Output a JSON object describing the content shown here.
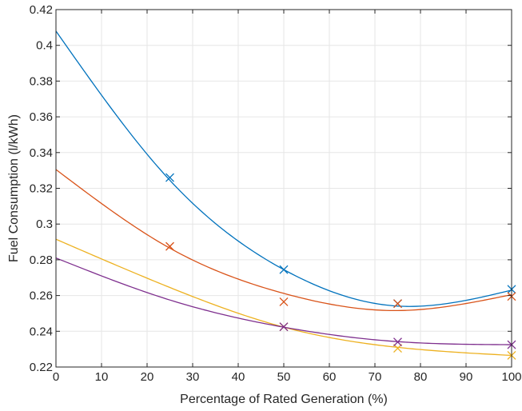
{
  "chart_data": {
    "type": "line",
    "title": "",
    "xlabel": "Percentage of Rated Generation (%)",
    "ylabel": "Fuel Consumption (l/kWh)",
    "xlim": [
      0,
      100
    ],
    "ylim": [
      0.22,
      0.42
    ],
    "xticks": [
      0,
      10,
      20,
      30,
      40,
      50,
      60,
      70,
      80,
      90,
      100
    ],
    "yticks": [
      0.22,
      0.24,
      0.26,
      0.28,
      0.3,
      0.32,
      0.34,
      0.36,
      0.38,
      0.4,
      0.42
    ],
    "ytick_labels": [
      "0.22",
      "0.24",
      "0.26",
      "0.28",
      "0.3",
      "0.32",
      "0.34",
      "0.36",
      "0.38",
      "0.4",
      "0.42"
    ],
    "grid": true,
    "legend": "none",
    "marker": "x",
    "series": [
      {
        "color": "#0072BD",
        "points": {
          "x": [
            25,
            50,
            75,
            100
          ],
          "y": [
            0.326,
            0.2745,
            0.2555,
            0.2635
          ]
        },
        "fit": {
          "x": [
            0,
            25,
            50,
            75,
            100
          ],
          "y": [
            0.408,
            0.3245,
            0.2745,
            0.2541,
            0.263
          ]
        }
      },
      {
        "color": "#D95319",
        "points": {
          "x": [
            25,
            50,
            75,
            100
          ],
          "y": [
            0.2875,
            0.2565,
            0.2555,
            0.2595
          ]
        },
        "fit": {
          "x": [
            0,
            25,
            50,
            75,
            100
          ],
          "y": [
            0.3305,
            0.2865,
            0.2612,
            0.2516,
            0.2605
          ]
        }
      },
      {
        "color": "#EDB120",
        "points": {
          "x": [
            50,
            75,
            100
          ],
          "y": [
            0.2425,
            0.2305,
            0.2265
          ]
        },
        "fit": {
          "x": [
            0,
            25,
            50,
            75,
            100
          ],
          "y": [
            0.2915,
            0.2645,
            0.2423,
            0.231,
            0.2265
          ]
        }
      },
      {
        "color": "#7E2F8E",
        "points": {
          "x": [
            50,
            75,
            100
          ],
          "y": [
            0.2425,
            0.234,
            0.2325
          ]
        },
        "fit": {
          "x": [
            0,
            25,
            50,
            75,
            100
          ],
          "y": [
            0.281,
            0.2575,
            0.2423,
            0.2342,
            0.2325
          ]
        }
      }
    ]
  }
}
